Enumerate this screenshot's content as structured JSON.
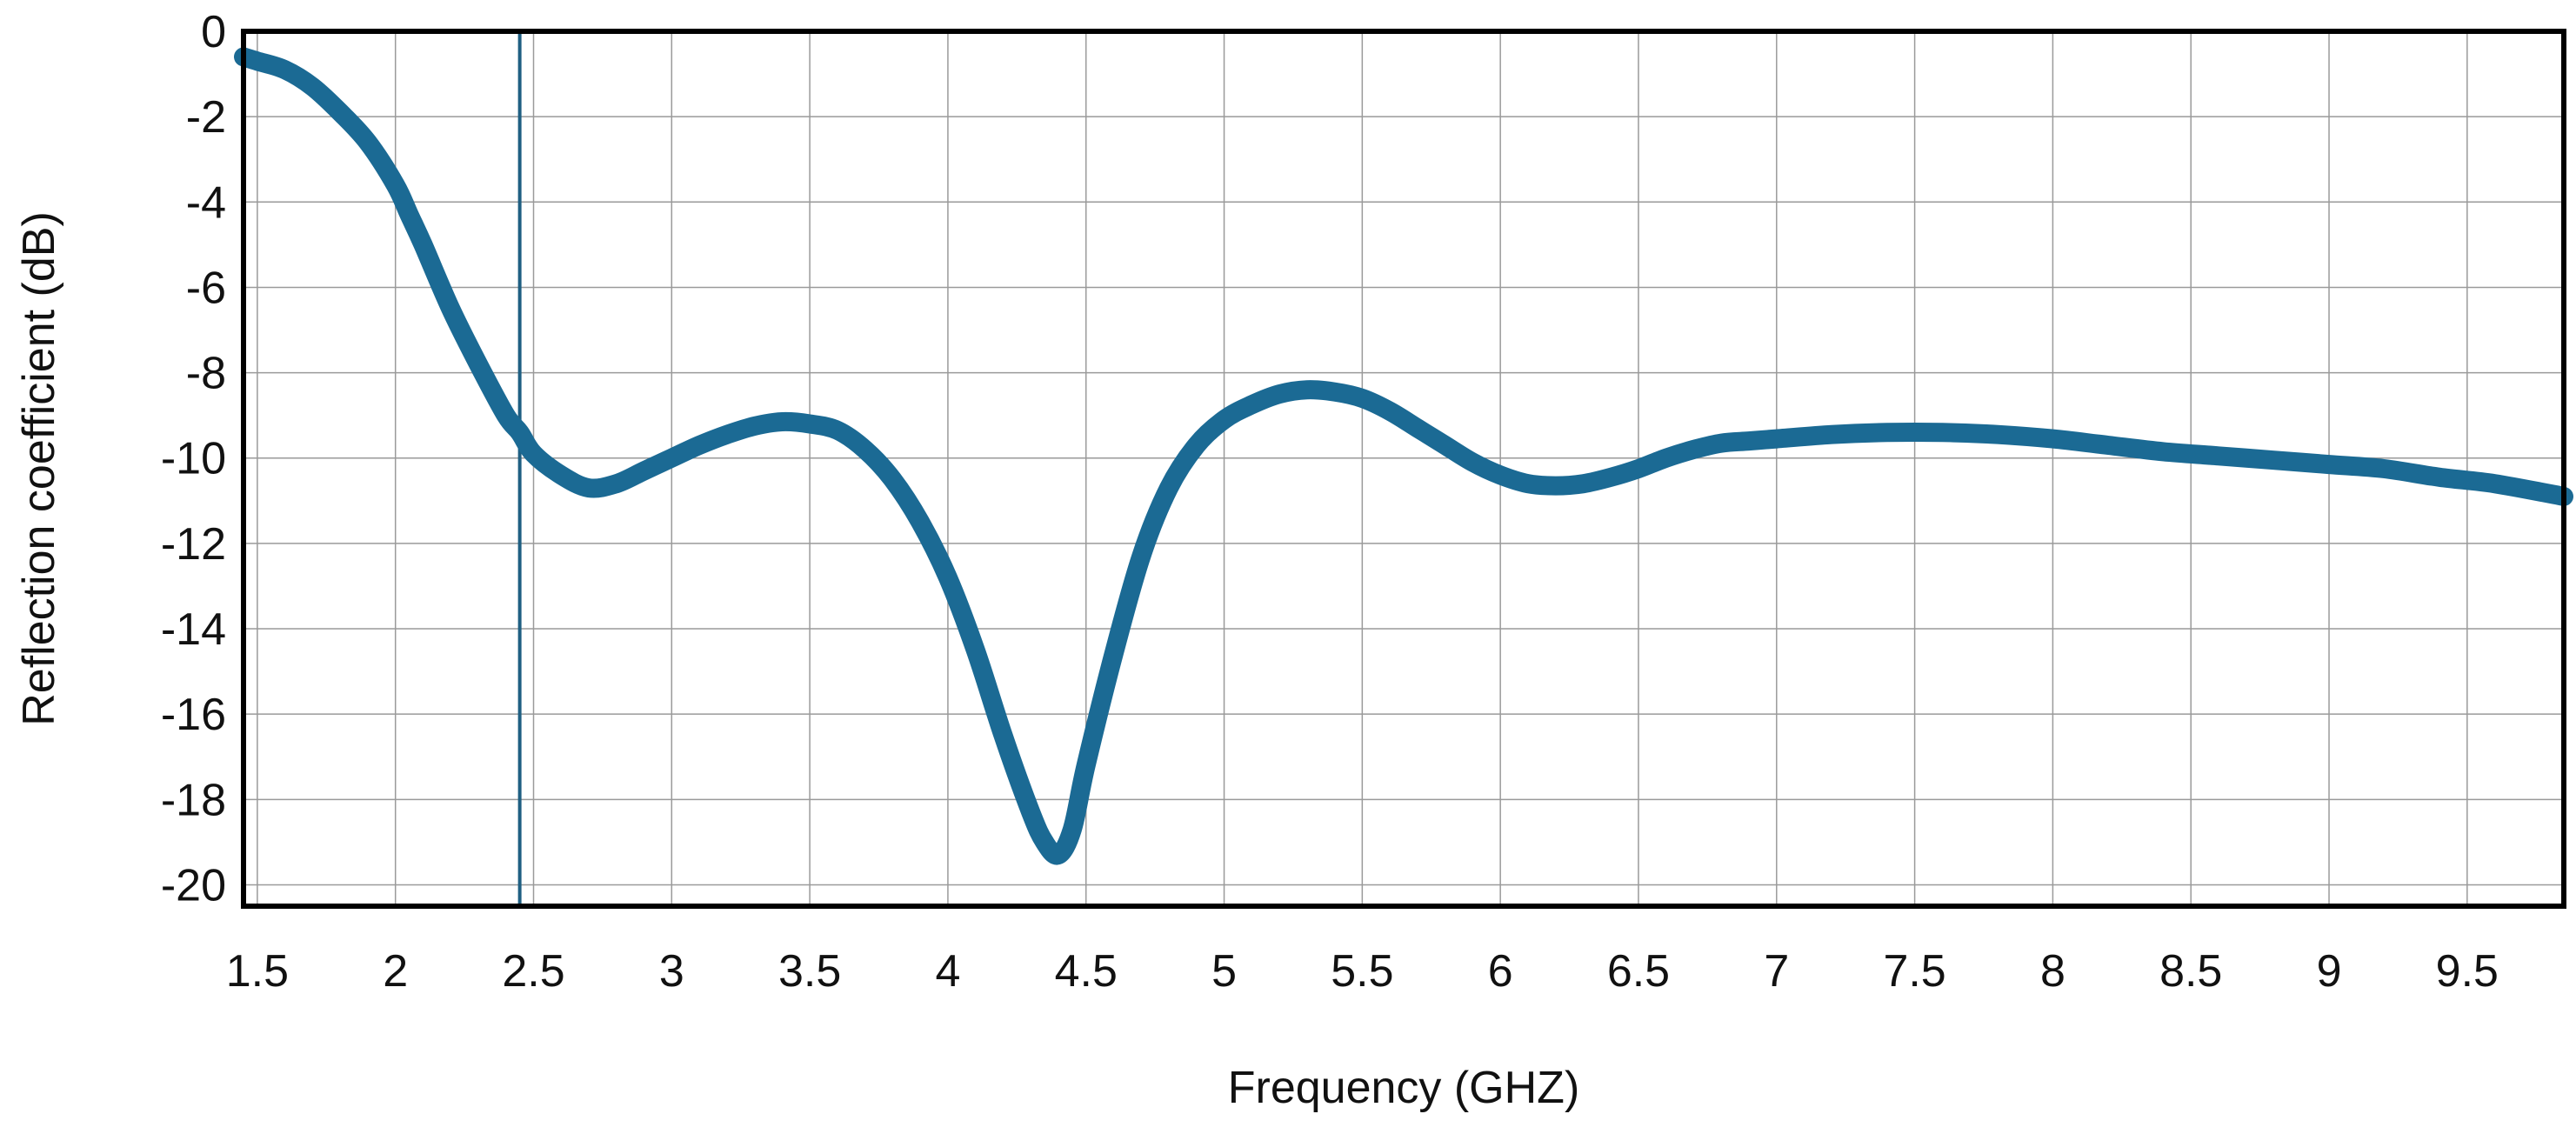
{
  "chart_data": {
    "type": "line",
    "title": "",
    "xlabel": "Frequency (GHZ)",
    "ylabel": "Reflection coefficient (dB)",
    "xlim": [
      1.45,
      9.85
    ],
    "ylim": [
      -20.5,
      0
    ],
    "x_ticks": [
      1.5,
      2,
      2.5,
      3,
      3.5,
      4,
      4.5,
      5,
      5.5,
      6,
      6.5,
      7,
      7.5,
      8,
      8.5,
      9,
      9.5
    ],
    "x_tick_labels": [
      "1.5",
      "2",
      "2.5",
      "3",
      "3.5",
      "4",
      "4.5",
      "5",
      "5.5",
      "6",
      "6.5",
      "7",
      "7.5",
      "8",
      "8.5",
      "9",
      "9.5"
    ],
    "y_ticks": [
      0,
      -2,
      -4,
      -6,
      -8,
      -10,
      -12,
      -14,
      -16,
      -18,
      -20
    ],
    "y_tick_labels": [
      "0",
      "-2",
      "-4",
      "-6",
      "-8",
      "-10",
      "-12",
      "-14",
      "-16",
      "-18",
      "-20"
    ],
    "grid": true,
    "legend": "none",
    "vertical_marker_x": 2.45,
    "colors": {
      "series": "#1b6a94",
      "marker": "#1f5f82",
      "frame": "#000000",
      "grid": "#9a9a9a"
    },
    "series": [
      {
        "x": [
          1.45,
          1.5,
          1.6,
          1.7,
          1.8,
          1.9,
          2.0,
          2.05,
          2.1,
          2.2,
          2.3,
          2.4,
          2.45,
          2.5,
          2.6,
          2.7,
          2.8,
          2.9,
          3.0,
          3.1,
          3.2,
          3.3,
          3.4,
          3.5,
          3.6,
          3.7,
          3.8,
          3.9,
          4.0,
          4.1,
          4.2,
          4.3,
          4.35,
          4.4,
          4.45,
          4.5,
          4.6,
          4.7,
          4.8,
          4.9,
          5.0,
          5.1,
          5.2,
          5.3,
          5.4,
          5.5,
          5.6,
          5.7,
          5.8,
          5.9,
          6.0,
          6.1,
          6.2,
          6.3,
          6.4,
          6.5,
          6.6,
          6.7,
          6.8,
          6.9,
          7.0,
          7.2,
          7.4,
          7.6,
          7.8,
          8.0,
          8.2,
          8.4,
          8.6,
          8.8,
          9.0,
          9.2,
          9.4,
          9.6,
          9.85
        ],
        "y": [
          -0.6,
          -0.7,
          -0.9,
          -1.3,
          -1.9,
          -2.6,
          -3.6,
          -4.3,
          -5.0,
          -6.5,
          -7.8,
          -9.0,
          -9.4,
          -9.9,
          -10.4,
          -10.7,
          -10.6,
          -10.3,
          -10.0,
          -9.7,
          -9.45,
          -9.25,
          -9.15,
          -9.2,
          -9.35,
          -9.8,
          -10.5,
          -11.5,
          -12.8,
          -14.5,
          -16.5,
          -18.3,
          -19.0,
          -19.3,
          -18.7,
          -17.2,
          -14.6,
          -12.3,
          -10.7,
          -9.7,
          -9.1,
          -8.75,
          -8.5,
          -8.4,
          -8.45,
          -8.6,
          -8.9,
          -9.3,
          -9.7,
          -10.1,
          -10.4,
          -10.6,
          -10.65,
          -10.6,
          -10.45,
          -10.25,
          -10.0,
          -9.8,
          -9.65,
          -9.6,
          -9.55,
          -9.45,
          -9.4,
          -9.4,
          -9.45,
          -9.55,
          -9.7,
          -9.85,
          -9.95,
          -10.05,
          -10.15,
          -10.25,
          -10.45,
          -10.6,
          -10.9
        ]
      }
    ]
  }
}
